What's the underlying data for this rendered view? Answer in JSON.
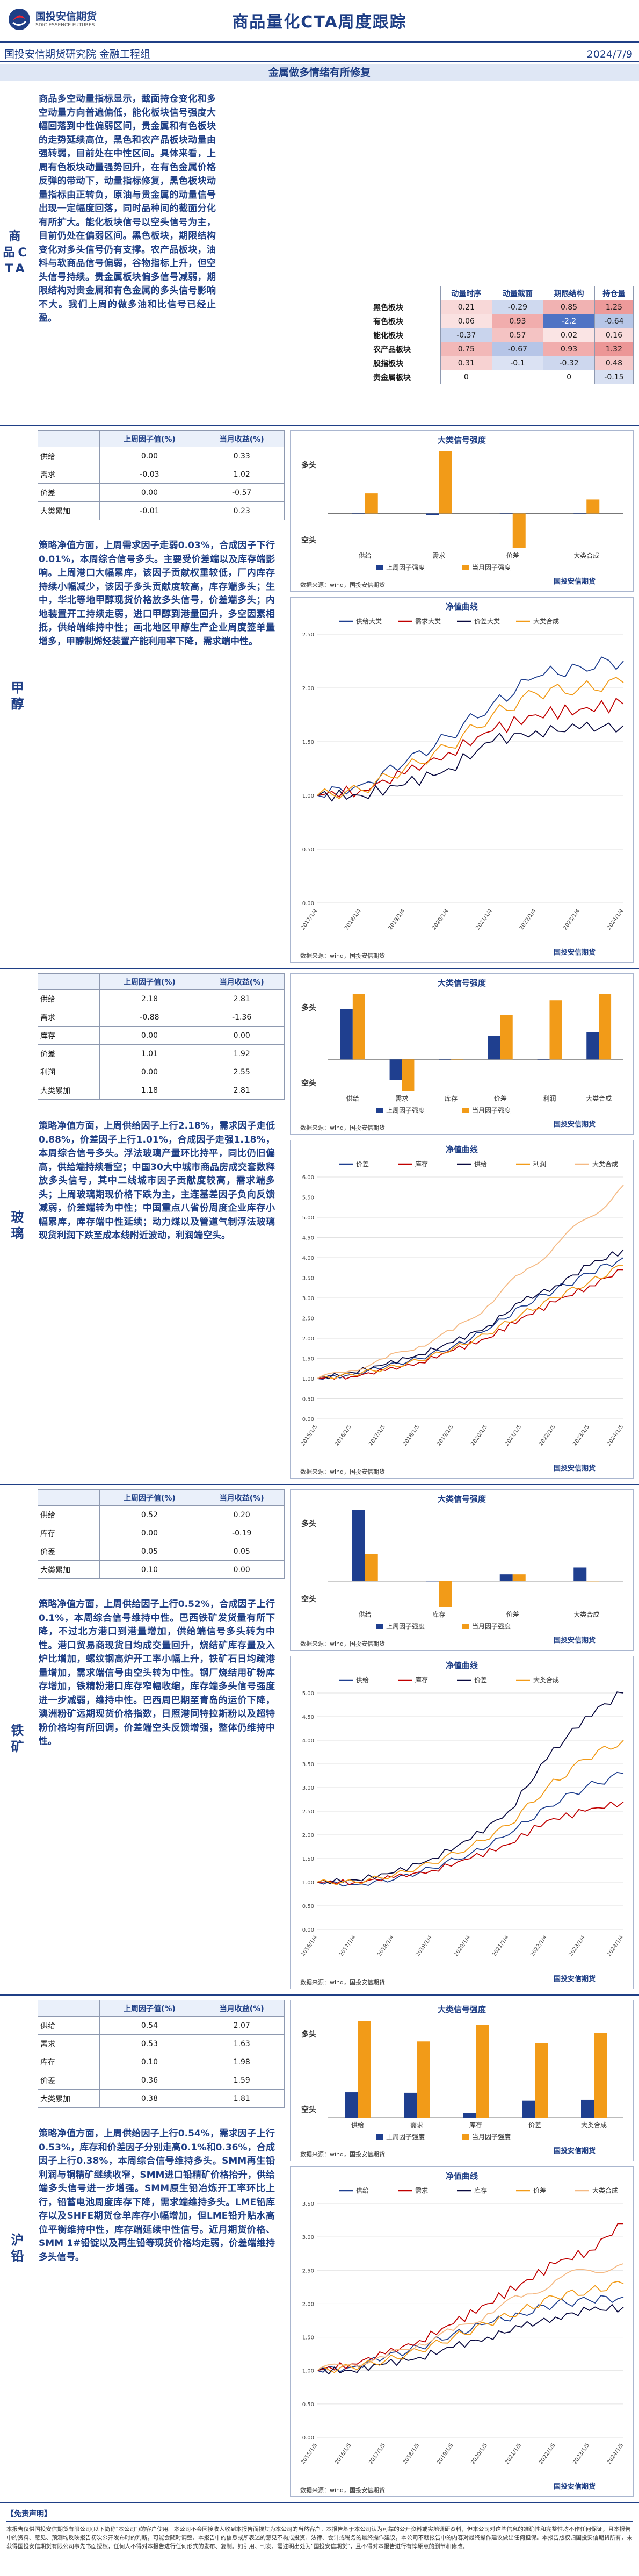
{
  "header": {
    "logo_main": "国投安信期货",
    "logo_sub": "SDIC ESSENCE FUTURES",
    "title": "商品量化CTA周度跟踪",
    "institute": "国投安信期货研究院 金融工程组",
    "date": "2024/7/9"
  },
  "band_title": "金属做多情绪有所修复",
  "cta": {
    "label": "商品CTA",
    "text": "商品多空动量指标显示，截面持仓变化和多空动量方向普遍偏低，能化板块信号强度大幅回落到中性偏弱区间，贵金属和有色板块的走势延续高位，黑色和农产品板块动量由强转弱，目前处在中性区间。具体来看，上周有色板块动量强势回升，在有色金属价格反弹的带动下，动量指标修复，黑色板块动量指标由正转负，原油与贵金属的动量信号出现一定幅度回落，同时品种间的截面分化有所扩大。能化板块信号以空头信号为主，目前仍处在偏弱区间。黑色板块，期限结构变化对多头信号仍有支撑。农产品板块，油料与软商品信号偏弱，谷物指标上升，但空头信号持续。贵金属板块偏多信号减弱，期限结构对贵金属和有色金属的多头信号影响不大。我们上周的做多油和比信号已经止盈。",
    "table": {
      "headers": [
        "",
        "动量时序",
        "动量截面",
        "期限结构",
        "持仓量"
      ],
      "rows": [
        {
          "name": "黑色板块",
          "vals": [
            "0.21",
            "-0.29",
            "0.85",
            "1.25"
          ]
        },
        {
          "name": "有色板块",
          "vals": [
            "0.06",
            "0.93",
            "-2.2",
            "-0.64"
          ]
        },
        {
          "name": "能化板块",
          "vals": [
            "-0.37",
            "0.57",
            "0.02",
            "0.16"
          ]
        },
        {
          "name": "农产品板块",
          "vals": [
            "0.75",
            "-0.67",
            "0.93",
            "1.32"
          ]
        },
        {
          "name": "股指板块",
          "vals": [
            "0.31",
            "-0.1",
            "-0.32",
            "0.48"
          ]
        },
        {
          "name": "贵金属板块",
          "vals": [
            "0",
            "",
            "0",
            "-0.15"
          ]
        }
      ]
    }
  },
  "sections": [
    {
      "label": "甲醇",
      "factor_headers": [
        "",
        "上周因子值(%)",
        "当月收益(%)"
      ],
      "factors": [
        [
          "供给",
          "0.00",
          "0.33"
        ],
        [
          "需求",
          "-0.03",
          "1.02"
        ],
        [
          "价差",
          "0.00",
          "-0.57"
        ],
        [
          "大类累加",
          "-0.01",
          "0.23"
        ]
      ],
      "text": "策略净值方面，上周需求因子走弱0.03%，合成因子下行0.01%，本周综合信号多头。主要受价差端以及库存端影响。上周港口大幅累库，该因子贡献权重较低，厂内库存持续小幅减少，该因子多头贡献度较高，库存端多头；生中，华北等地甲醇现货价格放多头信号，价差端多头；内地装置开工持续走弱，进口甲醇到港量回升，多空因素相抵，供给端维持中性；画北地区甲醇生产企业周度签单量增多，甲醇制烯烃装置产能利用率下降，需求端中性。",
      "signal_title": "大类信号强度",
      "nav_title": "净值曲线",
      "nav_legend": [
        "供给大类",
        "需求大类",
        "价差大类",
        "大类合成"
      ]
    },
    {
      "label": "玻璃",
      "factor_headers": [
        "",
        "上周因子值(%)",
        "当月收益(%)"
      ],
      "factors": [
        [
          "供给",
          "2.18",
          "2.81"
        ],
        [
          "需求",
          "-0.88",
          "-1.36"
        ],
        [
          "库存",
          "0.00",
          "0.00"
        ],
        [
          "价差",
          "1.01",
          "1.92"
        ],
        [
          "利润",
          "0.00",
          "2.55"
        ],
        [
          "大类累加",
          "1.18",
          "2.81"
        ]
      ],
      "text": "策略净值方面，上周供给因子上行2.18%，需求因子走低0.88%，价差因子上行1.01%，合成因子走强1.18%，本周综合信号多头。浮法玻璃产量环比持平，同比仍旧偏高，供给端持续看空；中国30大中城市商品房成交套数释放多头信号，其中二线城市因子贡献度较高，需求端多头；上周玻璃期现价格下跌为主，主连基差因子负向反馈减弱，价差端转为中性；中国重点八省份周度企业库存小幅累库，库存端中性延续；动力煤以及管道气制浮法玻璃现货利润下跌至成本线附近波动，利润端空头。",
      "signal_title": "大类信号强度",
      "nav_title": "净值曲线",
      "nav_legend": [
        "价差",
        "库存",
        "供给",
        "利润",
        "大类合成"
      ]
    },
    {
      "label": "铁矿",
      "factor_headers": [
        "",
        "上周因子值(%)",
        "当月收益(%)"
      ],
      "factors": [
        [
          "供给",
          "0.52",
          "0.20"
        ],
        [
          "库存",
          "0.00",
          "-0.19"
        ],
        [
          "价差",
          "0.05",
          "0.05"
        ],
        [
          "大类累加",
          "0.10",
          "0.00"
        ]
      ],
      "text": "策略净值方面，上周供给因子上行0.52%，合成因子上行0.1%，本周综合信号维持中性。巴西铁矿发货量有所下降，不过北方港口到港量增加，供给端信号多头转为中性。港口贸易商现货日均成交量回升，烧结矿库存量及入炉比增加，螺纹钢高炉开工率小幅上升，铁矿石日均疏港量增加，需求端信号由空头转为中性。钢厂烧结用矿粉库存增加，铁精粉港口库存窄幅收缩，库存端多头信号强度进一步减弱，维持中性。巴西周巴期至青岛的运价下降，澳洲粉矿远期现货价格指数，日照港同特拉斯粉以及超特粉价格均有所回调，价差端空头反馈增强，整体仍维持中性。",
      "signal_title": "大类信号强度",
      "nav_title": "净值曲线",
      "nav_legend": [
        "供给",
        "库存",
        "价差",
        "大类合成"
      ]
    },
    {
      "label": "沪铅",
      "factor_headers": [
        "",
        "上周因子值(%)",
        "当月收益(%)"
      ],
      "factors": [
        [
          "供给",
          "0.54",
          "2.07"
        ],
        [
          "需求",
          "0.53",
          "1.63"
        ],
        [
          "库存",
          "0.10",
          "1.98"
        ],
        [
          "价差",
          "0.36",
          "1.59"
        ],
        [
          "大类累加",
          "0.38",
          "1.81"
        ]
      ],
      "text": "策略净值方面，上周供给因子上行0.54%，需求因子上行0.53%，库存和价差因子分别走高0.1%和0.36%，合成因子上行0.38%，本周综合信号维持多头。SMM再生铅利润与铜精矿继续收窄，SMM进口铅精矿价格抬升，供给端多头信号进一步增强。SMM原生铅冶炼开工率环比上行，铅蓄电池周度库存下降，需求端维持多头。LME铅库存以及SHFE期货仓单库存小幅增加，但LME铅升贴水高位平衡维持中性，库存端延续中性信号。近月期货价格、SMM 1#铅锭以及再生铅等现货价格均走弱，价差端维持多头信号。",
      "signal_title": "大类信号强度",
      "nav_title": "净值曲线",
      "nav_legend": [
        "供给",
        "需求",
        "库存",
        "价差",
        "大类合成"
      ]
    }
  ],
  "chart_common": {
    "long_label": "多头",
    "short_label": "空头",
    "legend_last": "上周因子强度",
    "legend_month": "当月因子强度",
    "source": "数据来源：wind，国投安信期货",
    "wm_main": "国投安信期货",
    "wm_sub": "SDIC ESSENCE FUTURES"
  },
  "chart_data": [
    {
      "type": "bar",
      "name": "甲醇大类信号强度",
      "categories": [
        "供给",
        "需求",
        "价差",
        "大类合成"
      ],
      "series": [
        {
          "name": "上周因子强度",
          "values": [
            0.0,
            -0.03,
            0.0,
            -0.01
          ]
        },
        {
          "name": "当月因子强度",
          "values": [
            0.33,
            1.02,
            -0.57,
            0.23
          ]
        }
      ]
    },
    {
      "type": "line",
      "name": "甲醇净值曲线",
      "x": [
        "2017/1/4",
        "2018/1/4",
        "2019/1/4",
        "2020/1/4",
        "2021/1/4",
        "2022/1/4",
        "2023/1/4",
        "2024/1/4"
      ],
      "series": [
        {
          "name": "供给大类",
          "values": [
            1.0,
            1.1,
            1.3,
            1.55,
            1.85,
            2.1,
            2.2,
            2.25
          ]
        },
        {
          "name": "需求大类",
          "values": [
            1.0,
            1.05,
            1.2,
            1.4,
            1.6,
            1.75,
            1.8,
            1.85
          ]
        },
        {
          "name": "价差大类",
          "values": [
            1.0,
            1.0,
            1.1,
            1.25,
            1.5,
            1.6,
            1.62,
            1.65
          ]
        },
        {
          "name": "大类合成",
          "values": [
            1.0,
            1.05,
            1.25,
            1.45,
            1.75,
            1.95,
            2.0,
            2.05
          ]
        }
      ]
    },
    {
      "type": "bar",
      "name": "玻璃大类信号强度",
      "categories": [
        "供给",
        "需求",
        "库存",
        "价差",
        "利润",
        "大类合成"
      ],
      "series": [
        {
          "name": "上周因子强度",
          "values": [
            2.18,
            -0.88,
            0.0,
            1.01,
            0.0,
            1.18
          ]
        },
        {
          "name": "当月因子强度",
          "values": [
            2.81,
            -1.36,
            0.0,
            1.92,
            2.55,
            2.81
          ]
        }
      ]
    },
    {
      "type": "line",
      "name": "玻璃净值曲线",
      "x": [
        "2015/1/5",
        "2016/1/5",
        "2017/1/5",
        "2018/1/5",
        "2019/1/5",
        "2020/1/5",
        "2021/1/5",
        "2022/1/5",
        "2023/1/5",
        "2024/1/5"
      ],
      "series": [
        {
          "name": "价差",
          "values": [
            1.0,
            1.1,
            1.3,
            1.5,
            1.8,
            2.2,
            2.8,
            3.2,
            3.6,
            4.0
          ]
        },
        {
          "name": "库存",
          "values": [
            1.0,
            1.05,
            1.2,
            1.4,
            1.7,
            2.0,
            2.5,
            2.9,
            3.3,
            3.7
          ]
        },
        {
          "name": "供给",
          "values": [
            1.0,
            1.15,
            1.35,
            1.6,
            1.9,
            2.3,
            2.9,
            3.3,
            3.8,
            4.2
          ]
        },
        {
          "name": "利润",
          "values": [
            1.0,
            1.1,
            1.25,
            1.45,
            1.75,
            2.1,
            2.6,
            3.0,
            3.4,
            3.8
          ]
        },
        {
          "name": "大类合成",
          "values": [
            1.0,
            1.2,
            1.5,
            1.8,
            2.2,
            2.8,
            3.6,
            4.3,
            5.0,
            5.8
          ]
        }
      ]
    },
    {
      "type": "bar",
      "name": "铁矿大类信号强度",
      "categories": [
        "供给",
        "库存",
        "价差",
        "大类合成"
      ],
      "series": [
        {
          "name": "上周因子强度",
          "values": [
            0.52,
            0.0,
            0.05,
            0.1
          ]
        },
        {
          "name": "当月因子强度",
          "values": [
            0.2,
            -0.19,
            0.05,
            0.0
          ]
        }
      ]
    },
    {
      "type": "line",
      "name": "铁矿净值曲线",
      "x": [
        "2016/1/4",
        "2017/1/4",
        "2018/1/4",
        "2019/1/4",
        "2020/1/4",
        "2021/1/4",
        "2022/1/4",
        "2023/1/4",
        "2024/1/4"
      ],
      "series": [
        {
          "name": "供给",
          "values": [
            1.0,
            0.95,
            1.05,
            1.3,
            1.6,
            2.0,
            2.6,
            3.0,
            3.3
          ]
        },
        {
          "name": "库存",
          "values": [
            1.0,
            1.0,
            1.1,
            1.25,
            1.5,
            1.8,
            2.3,
            2.5,
            2.7
          ]
        },
        {
          "name": "价差",
          "values": [
            1.0,
            1.05,
            1.2,
            1.5,
            1.9,
            2.5,
            3.6,
            4.5,
            5.0
          ]
        },
        {
          "name": "大类合成",
          "values": [
            1.0,
            1.0,
            1.15,
            1.4,
            1.75,
            2.2,
            3.0,
            3.6,
            4.0
          ]
        }
      ]
    },
    {
      "type": "bar",
      "name": "沪铅大类信号强度",
      "categories": [
        "供给",
        "需求",
        "库存",
        "价差",
        "大类合成"
      ],
      "series": [
        {
          "name": "上周因子强度",
          "values": [
            0.54,
            0.53,
            0.1,
            0.36,
            0.38
          ]
        },
        {
          "name": "当月因子强度",
          "values": [
            2.07,
            1.63,
            1.98,
            1.59,
            1.81
          ]
        }
      ]
    },
    {
      "type": "line",
      "name": "沪铅净值曲线",
      "x": [
        "2015/1/5",
        "2016/1/5",
        "2017/1/5",
        "2018/1/5",
        "2019/1/5",
        "2020/1/5",
        "2021/1/5",
        "2022/1/5",
        "2023/1/5",
        "2024/1/5"
      ],
      "series": [
        {
          "name": "供给",
          "values": [
            1.0,
            1.05,
            1.2,
            1.35,
            1.55,
            1.7,
            1.85,
            2.0,
            2.05,
            2.1
          ]
        },
        {
          "name": "需求",
          "values": [
            1.0,
            1.1,
            1.25,
            1.45,
            1.7,
            2.0,
            2.3,
            2.6,
            2.8,
            3.2
          ]
        },
        {
          "name": "库存",
          "values": [
            1.0,
            1.0,
            1.1,
            1.2,
            1.35,
            1.5,
            1.65,
            1.8,
            1.9,
            1.95
          ]
        },
        {
          "name": "价差",
          "values": [
            1.0,
            1.05,
            1.15,
            1.3,
            1.5,
            1.7,
            1.9,
            2.1,
            2.2,
            2.3
          ]
        },
        {
          "name": "大类合成",
          "values": [
            1.0,
            1.1,
            1.2,
            1.4,
            1.6,
            1.85,
            2.1,
            2.35,
            2.5,
            2.6
          ]
        }
      ]
    }
  ],
  "disclaimer": {
    "title": "【免责声明】",
    "text": "本报告仅供国投安信期货有限公司(以下简称\"本公司\")的客户使用。本公司不会因接收人收到本报告而视其为本公司的当然客户。本报告基于本公司认为可靠的公开资料或实地调研资料，但本公司对这些信息的准确性和完整性均不作任何保证，且本报告中的资料、意见、预测均反映报告初次公开发布时的判断，可能会随时调整。本报告中的信息或所表述的意见不构成投资、法律、会计或税务的最终操作建议，本公司不就报告中的内容对最终操作建议做出任何担保。本报告版权归国投安信期货所有，未获得国投安信期货有限公司事先书面授权，任何人不得对本报告进行任何形式的发布、复制。如引用、刊发，需注明出处为\"国投安信期货\"，且不得对本报告进行有悖原意的删节和修改。"
  },
  "colors": {
    "brand": "#1f3f86",
    "last": "#1f3f8f",
    "month": "#f29b18",
    "neg": "#c00000",
    "pos_cell": "#4472c4",
    "neg_cell": "#e8a0a0"
  }
}
